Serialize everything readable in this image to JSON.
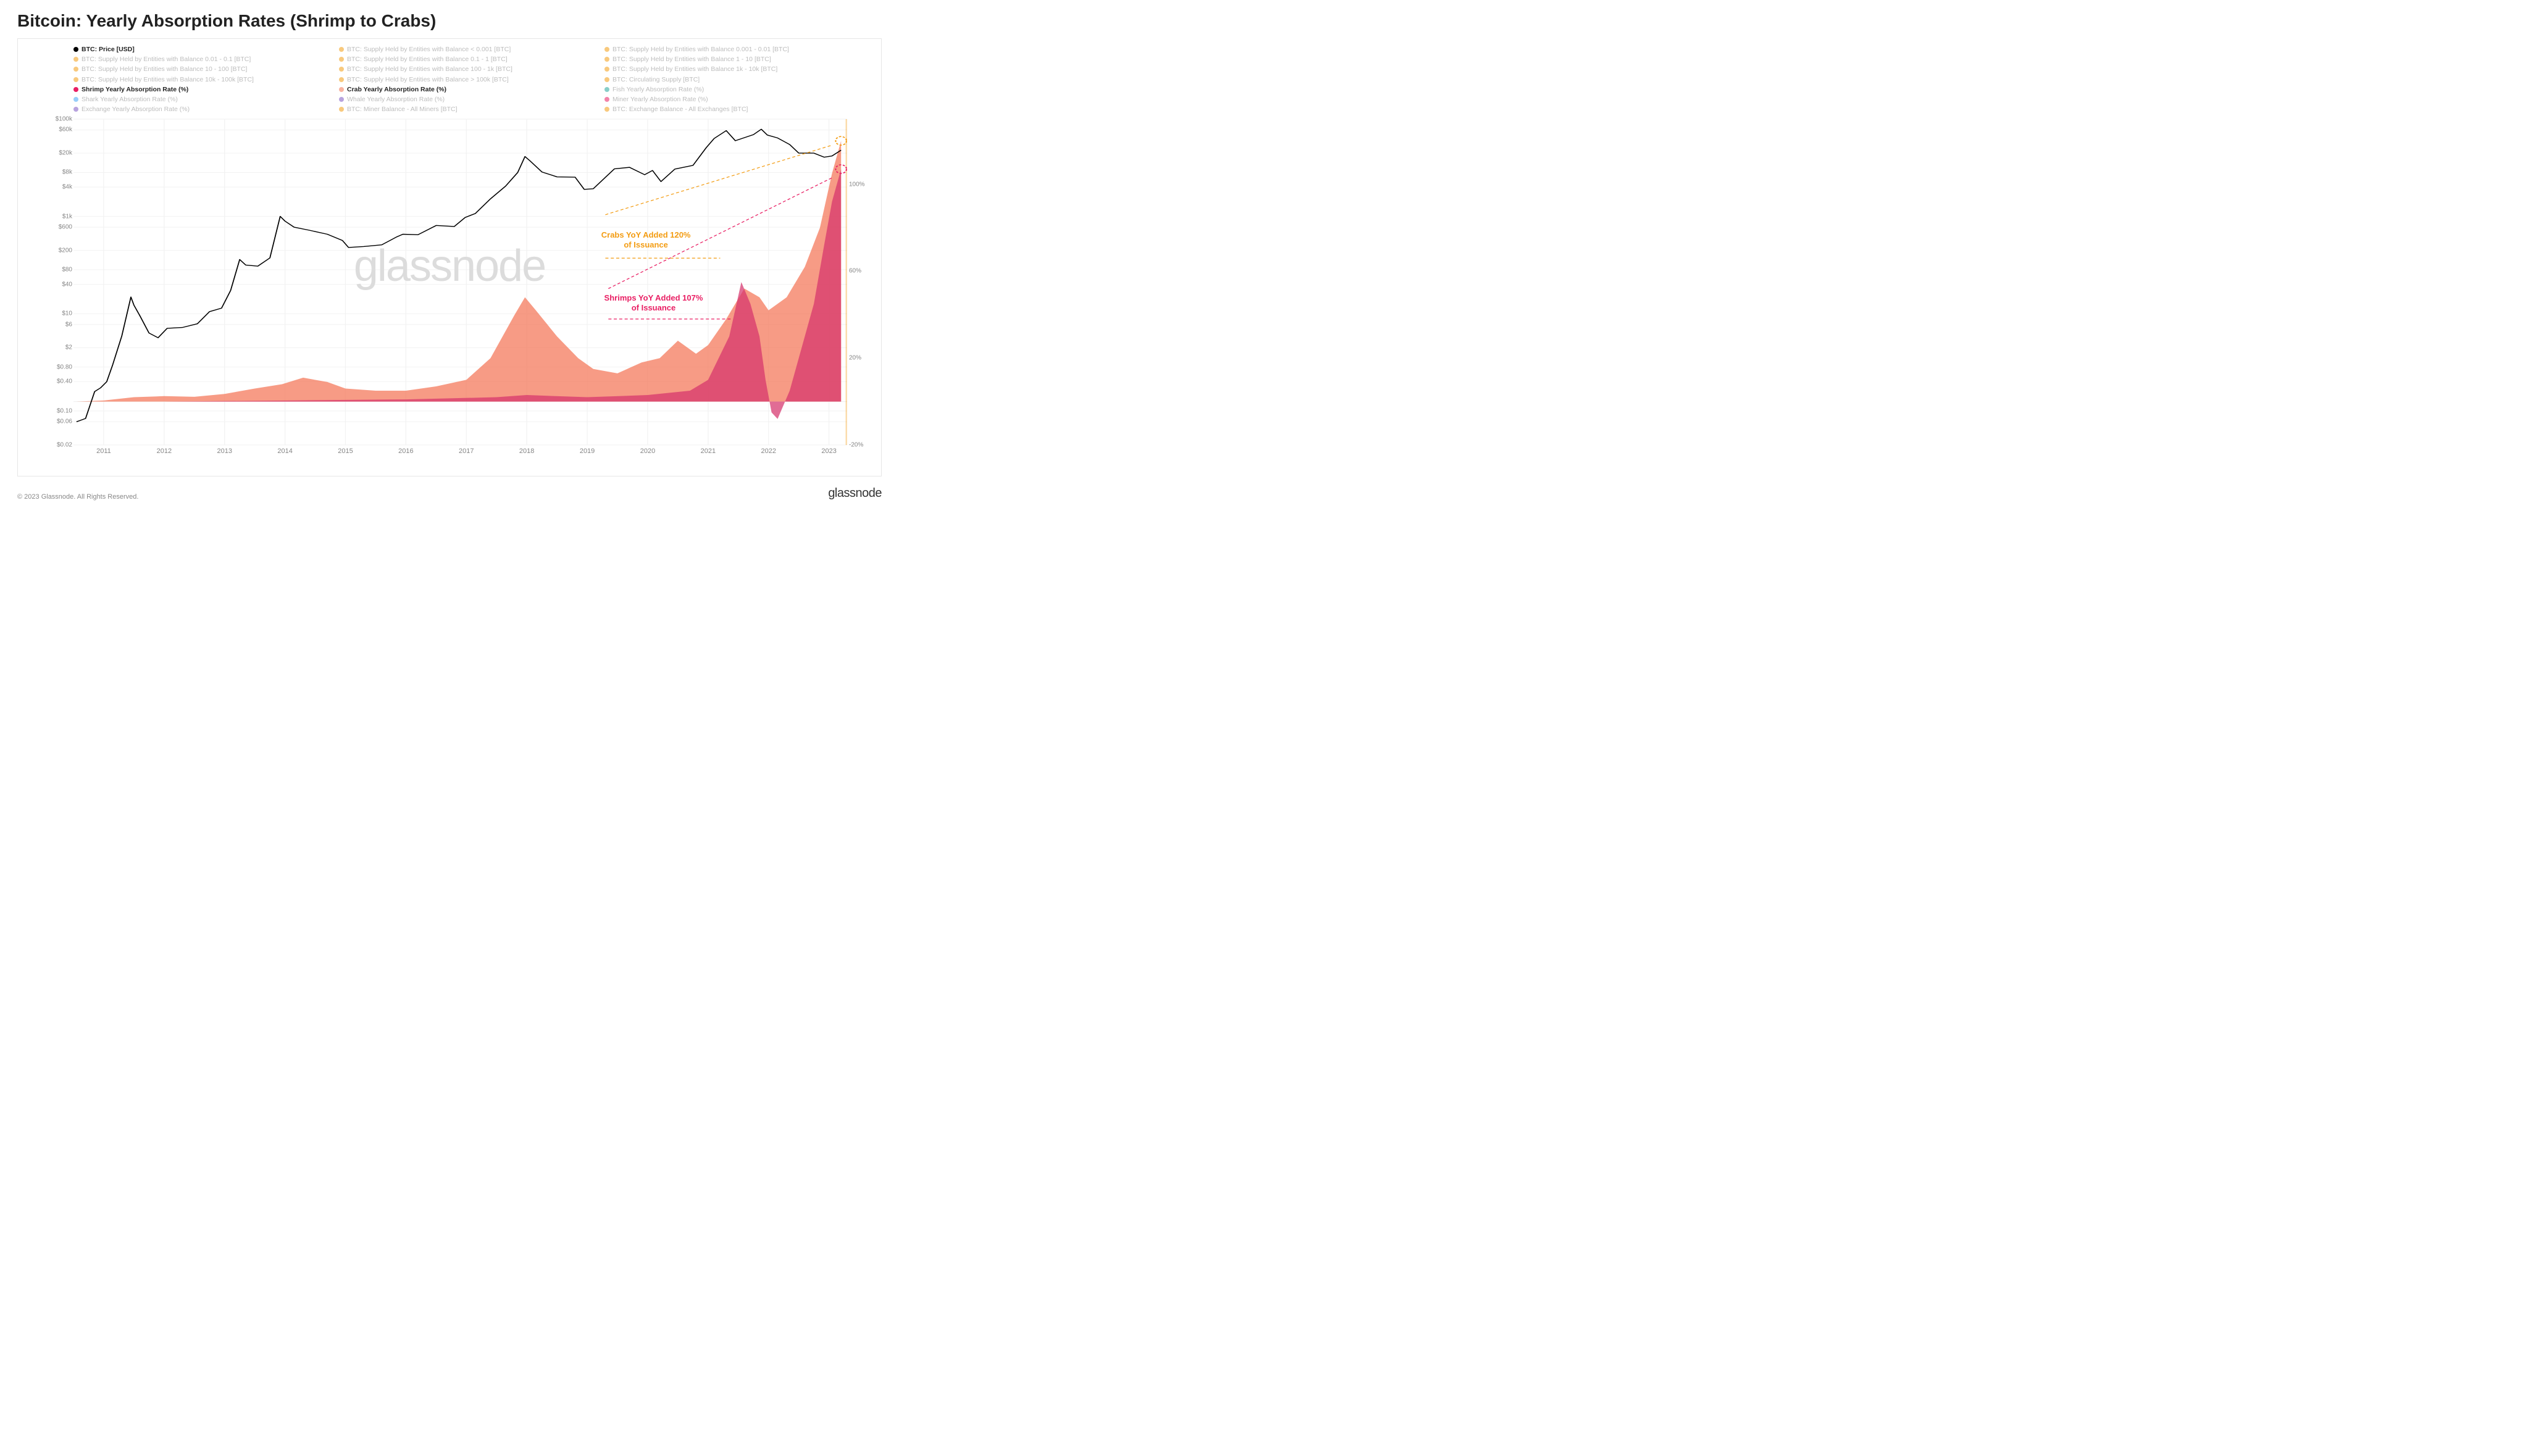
{
  "title": "Bitcoin: Yearly Absorption Rates (Shrimp to Crabs)",
  "copyright": "© 2023 Glassnode. All Rights Reserved.",
  "brand": "glassnode",
  "watermark": "glassnode",
  "colors": {
    "price_line": "#000000",
    "crab_area": "#f47a5c",
    "crab_area_opacity": 0.75,
    "shrimp_area": "#d6336c",
    "shrimp_area_opacity": 0.72,
    "orange": "#f39c12",
    "magenta": "#e91e63",
    "teal": "#26a69a",
    "blue": "#42a5f5",
    "purple": "#7e57c2",
    "light_crab": "#f8b39f",
    "grid": "#f2f2f2",
    "axis_text": "#868686",
    "legend_dimmed": "#bdbdbd",
    "background": "#ffffff",
    "border": "#e6e6e6"
  },
  "legend": [
    {
      "label": "BTC: Price [USD]",
      "color": "#000000",
      "style": "bold"
    },
    {
      "label": "BTC: Supply Held by Entities with Balance < 0.001 [BTC]",
      "color": "#f39c12",
      "style": "dimmed"
    },
    {
      "label": "BTC: Supply Held by Entities with Balance 0.001 - 0.01 [BTC]",
      "color": "#f39c12",
      "style": "dimmed"
    },
    {
      "label": "BTC: Supply Held by Entities with Balance 0.01 - 0.1 [BTC]",
      "color": "#f39c12",
      "style": "dimmed"
    },
    {
      "label": "BTC: Supply Held by Entities with Balance 0.1 - 1 [BTC]",
      "color": "#f39c12",
      "style": "dimmed"
    },
    {
      "label": "BTC: Supply Held by Entities with Balance 1 - 10 [BTC]",
      "color": "#f39c12",
      "style": "dimmed"
    },
    {
      "label": "BTC: Supply Held by Entities with Balance 10 - 100 [BTC]",
      "color": "#f39c12",
      "style": "dimmed"
    },
    {
      "label": "BTC: Supply Held by Entities with Balance 100 - 1k [BTC]",
      "color": "#f39c12",
      "style": "dimmed"
    },
    {
      "label": "BTC: Supply Held by Entities with Balance 1k - 10k [BTC]",
      "color": "#f39c12",
      "style": "dimmed"
    },
    {
      "label": "BTC: Supply Held by Entities with Balance 10k - 100k [BTC]",
      "color": "#f39c12",
      "style": "dimmed"
    },
    {
      "label": "BTC: Supply Held by Entities with Balance > 100k [BTC]",
      "color": "#f39c12",
      "style": "dimmed"
    },
    {
      "label": "BTC: Circulating Supply [BTC]",
      "color": "#f39c12",
      "style": "dimmed"
    },
    {
      "label": "Shrimp Yearly Absorption Rate (%)",
      "color": "#e91e63",
      "style": "bold"
    },
    {
      "label": "Crab Yearly Absorption Rate (%)",
      "color": "#f8b39f",
      "style": "bold"
    },
    {
      "label": "Fish Yearly Absorption Rate (%)",
      "color": "#26a69a",
      "style": "dimmed"
    },
    {
      "label": "Shark Yearly Absorption Rate (%)",
      "color": "#42a5f5",
      "style": "dimmed"
    },
    {
      "label": "Whale Yearly Absorption Rate (%)",
      "color": "#7e57c2",
      "style": "dimmed"
    },
    {
      "label": "Miner Yearly Absorption Rate (%)",
      "color": "#e91e63",
      "style": "dimmed"
    },
    {
      "label": "Exchange Yearly Absorption Rate (%)",
      "color": "#7e57c2",
      "style": "dimmed"
    },
    {
      "label": "BTC: Miner Balance - All Miners [BTC]",
      "color": "#f39c12",
      "style": "dimmed"
    },
    {
      "label": "BTC: Exchange Balance - All Exchanges [BTC]",
      "color": "#f39c12",
      "style": "dimmed"
    }
  ],
  "annotations": {
    "crabs": {
      "line1": "Crabs YoY Added 120%",
      "line2": "of Issuance",
      "color": "#f39c12"
    },
    "shrimps": {
      "line1": "Shrimps YoY Added 107%",
      "line2": "of Issuance",
      "color": "#e91e63"
    }
  },
  "chart": {
    "type": "combo-log-line-plus-area",
    "x_domain_years": [
      2010.5,
      2023.3
    ],
    "x_ticks": [
      2011,
      2012,
      2013,
      2014,
      2015,
      2016,
      2017,
      2018,
      2019,
      2020,
      2021,
      2022,
      2023
    ],
    "left_axis": {
      "scale": "log",
      "unit": "USD",
      "domain_log10": [
        -1.7,
        5.0
      ],
      "ticks": [
        {
          "v": 100000,
          "label": "$100k"
        },
        {
          "v": 60000,
          "label": "$60k"
        },
        {
          "v": 20000,
          "label": "$20k"
        },
        {
          "v": 8000,
          "label": "$8k"
        },
        {
          "v": 4000,
          "label": "$4k"
        },
        {
          "v": 1000,
          "label": "$1k"
        },
        {
          "v": 600,
          "label": "$600"
        },
        {
          "v": 200,
          "label": "$200"
        },
        {
          "v": 80,
          "label": "$80"
        },
        {
          "v": 40,
          "label": "$40"
        },
        {
          "v": 10,
          "label": "$10"
        },
        {
          "v": 6,
          "label": "$6"
        },
        {
          "v": 2,
          "label": "$2"
        },
        {
          "v": 0.8,
          "label": "$0.80"
        },
        {
          "v": 0.4,
          "label": "$0.40"
        },
        {
          "v": 0.1,
          "label": "$0.10"
        },
        {
          "v": 0.06,
          "label": "$0.06"
        },
        {
          "v": 0.02,
          "label": "$0.02"
        }
      ]
    },
    "right_axis": {
      "scale": "linear",
      "unit": "%",
      "domain": [
        -20,
        130
      ],
      "ticks": [
        {
          "v": 100,
          "label": "100%"
        },
        {
          "v": 60,
          "label": "60%"
        },
        {
          "v": 20,
          "label": "20%"
        },
        {
          "v": -20,
          "label": "-20%"
        }
      ]
    },
    "price_series": [
      [
        2010.55,
        0.06
      ],
      [
        2010.7,
        0.07
      ],
      [
        2010.85,
        0.25
      ],
      [
        2010.95,
        0.3
      ],
      [
        2011.05,
        0.4
      ],
      [
        2011.15,
        0.9
      ],
      [
        2011.3,
        3.5
      ],
      [
        2011.45,
        22
      ],
      [
        2011.5,
        15
      ],
      [
        2011.6,
        9
      ],
      [
        2011.75,
        4.0
      ],
      [
        2011.9,
        3.2
      ],
      [
        2012.05,
        5.0
      ],
      [
        2012.3,
        5.2
      ],
      [
        2012.55,
        6.2
      ],
      [
        2012.75,
        11
      ],
      [
        2012.95,
        13
      ],
      [
        2013.1,
        30
      ],
      [
        2013.25,
        130
      ],
      [
        2013.35,
        100
      ],
      [
        2013.55,
        95
      ],
      [
        2013.75,
        140
      ],
      [
        2013.92,
        1000
      ],
      [
        2014.0,
        800
      ],
      [
        2014.15,
        600
      ],
      [
        2014.4,
        520
      ],
      [
        2014.7,
        430
      ],
      [
        2014.95,
        320
      ],
      [
        2015.05,
        230
      ],
      [
        2015.3,
        240
      ],
      [
        2015.6,
        260
      ],
      [
        2015.85,
        380
      ],
      [
        2015.95,
        430
      ],
      [
        2016.2,
        420
      ],
      [
        2016.5,
        650
      ],
      [
        2016.8,
        620
      ],
      [
        2016.98,
        950
      ],
      [
        2017.15,
        1150
      ],
      [
        2017.4,
        2300
      ],
      [
        2017.65,
        4200
      ],
      [
        2017.85,
        8000
      ],
      [
        2017.97,
        17000
      ],
      [
        2018.05,
        14000
      ],
      [
        2018.25,
        8200
      ],
      [
        2018.5,
        6500
      ],
      [
        2018.8,
        6400
      ],
      [
        2018.95,
        3600
      ],
      [
        2019.1,
        3700
      ],
      [
        2019.45,
        9500
      ],
      [
        2019.7,
        10200
      ],
      [
        2019.95,
        7200
      ],
      [
        2020.08,
        8800
      ],
      [
        2020.22,
        5200
      ],
      [
        2020.45,
        9400
      ],
      [
        2020.75,
        11200
      ],
      [
        2020.97,
        26000
      ],
      [
        2021.1,
        40000
      ],
      [
        2021.3,
        58000
      ],
      [
        2021.45,
        36000
      ],
      [
        2021.75,
        48000
      ],
      [
        2021.88,
        62000
      ],
      [
        2021.98,
        47000
      ],
      [
        2022.15,
        41000
      ],
      [
        2022.35,
        30000
      ],
      [
        2022.5,
        20000
      ],
      [
        2022.75,
        20000
      ],
      [
        2022.92,
        16500
      ],
      [
        2023.05,
        17500
      ],
      [
        2023.2,
        23000
      ]
    ],
    "crab_area_series": [
      [
        2010.55,
        0
      ],
      [
        2011.0,
        0.5
      ],
      [
        2011.5,
        2
      ],
      [
        2012.0,
        2.5
      ],
      [
        2012.5,
        2.2
      ],
      [
        2013.0,
        3.5
      ],
      [
        2013.5,
        6
      ],
      [
        2013.95,
        8
      ],
      [
        2014.3,
        11
      ],
      [
        2014.7,
        9
      ],
      [
        2015.0,
        6
      ],
      [
        2015.5,
        5
      ],
      [
        2016.0,
        5
      ],
      [
        2016.5,
        7
      ],
      [
        2017.0,
        10
      ],
      [
        2017.4,
        20
      ],
      [
        2017.8,
        40
      ],
      [
        2017.97,
        48
      ],
      [
        2018.15,
        42
      ],
      [
        2018.5,
        30
      ],
      [
        2018.85,
        20
      ],
      [
        2019.1,
        15
      ],
      [
        2019.5,
        13
      ],
      [
        2019.9,
        18
      ],
      [
        2020.2,
        20
      ],
      [
        2020.5,
        28
      ],
      [
        2020.8,
        22
      ],
      [
        2021.0,
        26
      ],
      [
        2021.3,
        38
      ],
      [
        2021.6,
        52
      ],
      [
        2021.85,
        48
      ],
      [
        2022.0,
        42
      ],
      [
        2022.3,
        48
      ],
      [
        2022.6,
        62
      ],
      [
        2022.85,
        80
      ],
      [
        2023.05,
        105
      ],
      [
        2023.2,
        120
      ]
    ],
    "shrimp_area_series": [
      [
        2010.55,
        0
      ],
      [
        2012.0,
        0
      ],
      [
        2014.0,
        0.5
      ],
      [
        2016.0,
        1
      ],
      [
        2017.5,
        2
      ],
      [
        2018.0,
        3
      ],
      [
        2019.0,
        2
      ],
      [
        2020.0,
        3
      ],
      [
        2020.7,
        5
      ],
      [
        2021.0,
        10
      ],
      [
        2021.35,
        30
      ],
      [
        2021.55,
        55
      ],
      [
        2021.7,
        45
      ],
      [
        2021.85,
        30
      ],
      [
        2021.95,
        10
      ],
      [
        2022.05,
        -5
      ],
      [
        2022.15,
        -8
      ],
      [
        2022.35,
        5
      ],
      [
        2022.55,
        25
      ],
      [
        2022.75,
        45
      ],
      [
        2022.92,
        72
      ],
      [
        2023.05,
        92
      ],
      [
        2023.2,
        107
      ]
    ],
    "end_markers": {
      "crab": {
        "x": 2023.2,
        "y": 120,
        "color": "#f39c12"
      },
      "shrimp": {
        "x": 2023.2,
        "y": 107,
        "color": "#e91e63"
      }
    }
  }
}
